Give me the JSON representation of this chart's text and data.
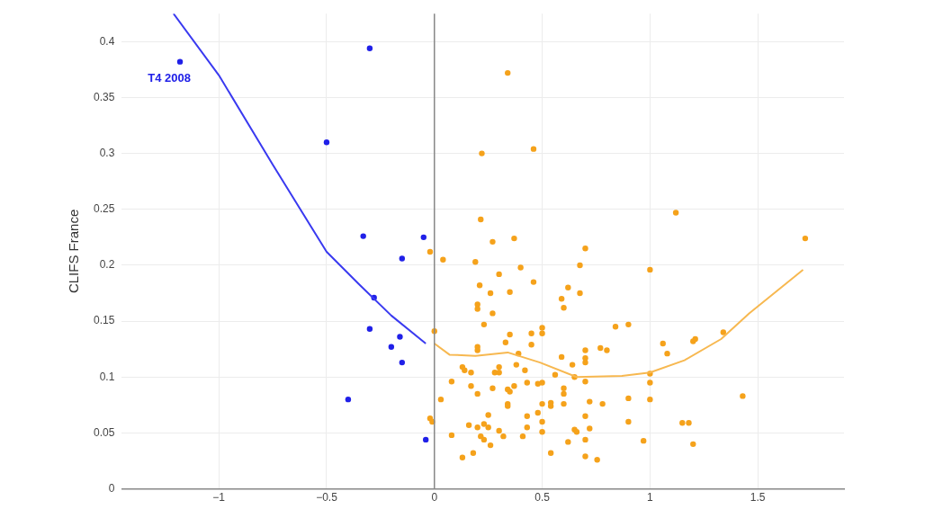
{
  "chart_data": {
    "type": "scatter",
    "ylabel": "CLIFS France",
    "xlim": [
      -1.45,
      1.9
    ],
    "ylim": [
      0,
      0.425
    ],
    "xticks": [
      {
        "value": -1,
        "label": "−1"
      },
      {
        "value": -0.5,
        "label": "−0.5"
      },
      0,
      0.5,
      1,
      1.5
    ],
    "yticks": [
      0,
      0.05,
      0.1,
      0.15,
      0.2,
      0.25,
      0.3,
      0.35,
      0.4
    ],
    "grid": true,
    "marker": "circle",
    "line_style": "solid",
    "ref_lines": [
      {
        "axis": "x",
        "value": 0,
        "color": "#888888"
      }
    ],
    "annotations": [
      {
        "text": "T4 2008",
        "x": -1.18,
        "y": 0.382
      }
    ],
    "series": [
      {
        "color": "#2020e8",
        "x": [
          -1.18,
          -0.3,
          -0.5,
          -0.33,
          -0.05,
          -0.15,
          -0.28,
          -0.3,
          -0.16,
          -0.2,
          -0.15,
          -0.4,
          -0.04
        ],
        "values": [
          0.382,
          0.394,
          0.31,
          0.226,
          0.225,
          0.206,
          0.171,
          0.143,
          0.136,
          0.127,
          0.113,
          0.08,
          0.044
        ]
      },
      {
        "color": "#f5a21b",
        "x": [
          0.22,
          0.46,
          0.215,
          0.27,
          0.37,
          0.7,
          -0.02,
          0.04,
          0.19,
          0.4,
          0.675,
          0.3,
          0.46,
          0.21,
          0.26,
          0.35,
          0.62,
          0.675,
          0.59,
          0.6,
          0.2,
          0.2,
          0.27,
          0.23,
          0,
          0.35,
          0.33,
          0.45,
          0.5,
          0.5,
          0.45,
          0.84,
          0.9,
          0.2,
          0.2,
          0.7,
          0.7,
          0.7,
          0.77,
          0.8,
          0.59,
          0.39,
          0.64,
          0.38,
          0.13,
          0.14,
          0.17,
          0.28,
          0.3,
          0.3,
          0.42,
          0.56,
          0.65,
          0.7,
          0.08,
          0.17,
          0.43,
          0.48,
          0.5,
          0.27,
          0.34,
          0.37,
          0.6,
          0.6,
          0.2,
          0.35,
          0.03,
          0.72,
          0.78,
          0.9,
          0.5,
          0.54,
          0.54,
          0.6,
          0.34,
          0.34,
          -0.02,
          -0.01,
          0.25,
          0.43,
          0.48,
          0.5,
          0.7,
          0.9,
          0.16,
          0.2,
          0.23,
          0.25,
          0.3,
          0.43,
          0.5,
          0.65,
          0.66,
          0.72,
          0.08,
          0.215,
          0.23,
          0.32,
          0.41,
          0.7,
          0.62,
          0.26,
          0.97,
          0.18,
          0.54,
          0.13,
          0.7,
          0.755,
          1,
          1.12,
          1.72,
          1.06,
          1.08,
          1.2,
          1.21,
          1.34,
          1,
          1,
          1,
          1.43,
          1.15,
          1.18,
          1.2,
          0.34
        ],
        "values": [
          0.3,
          0.304,
          0.241,
          0.221,
          0.224,
          0.215,
          0.212,
          0.205,
          0.203,
          0.198,
          0.2,
          0.192,
          0.185,
          0.182,
          0.175,
          0.176,
          0.18,
          0.175,
          0.17,
          0.162,
          0.165,
          0.161,
          0.157,
          0.147,
          0.141,
          0.138,
          0.131,
          0.139,
          0.144,
          0.139,
          0.129,
          0.145,
          0.147,
          0.127,
          0.124,
          0.124,
          0.117,
          0.113,
          0.126,
          0.124,
          0.118,
          0.121,
          0.111,
          0.111,
          0.109,
          0.106,
          0.104,
          0.104,
          0.104,
          0.109,
          0.106,
          0.102,
          0.1,
          0.096,
          0.096,
          0.092,
          0.095,
          0.094,
          0.095,
          0.09,
          0.089,
          0.092,
          0.09,
          0.085,
          0.085,
          0.087,
          0.08,
          0.078,
          0.076,
          0.081,
          0.076,
          0.077,
          0.074,
          0.076,
          0.076,
          0.074,
          0.063,
          0.06,
          0.066,
          0.065,
          0.068,
          0.06,
          0.065,
          0.06,
          0.057,
          0.055,
          0.058,
          0.055,
          0.052,
          0.055,
          0.051,
          0.053,
          0.051,
          0.054,
          0.048,
          0.047,
          0.044,
          0.047,
          0.047,
          0.044,
          0.042,
          0.039,
          0.043,
          0.032,
          0.032,
          0.028,
          0.029,
          0.026,
          0.196,
          0.247,
          0.224,
          0.13,
          0.121,
          0.132,
          0.134,
          0.14,
          0.103,
          0.095,
          0.08,
          0.083,
          0.059,
          0.059,
          0.04,
          0.372
        ]
      },
      {
        "type": "line",
        "marker": "none",
        "color": "#3a3af0",
        "x": [
          -1.21,
          -1,
          -0.75,
          -0.5,
          -0.35,
          -0.2,
          -0.04
        ],
        "values": [
          0.425,
          0.37,
          0.29,
          0.212,
          0.183,
          0.155,
          0.13
        ]
      },
      {
        "type": "line",
        "marker": "none",
        "color": "#f7b850",
        "x": [
          0,
          0.07,
          0.19,
          0.34,
          0.49,
          0.66,
          0.87,
          1,
          1.16,
          1.33,
          1.46,
          1.71
        ],
        "values": [
          0.13,
          0.12,
          0.119,
          0.122,
          0.113,
          0.1,
          0.101,
          0.104,
          0.115,
          0.134,
          0.157,
          0.196
        ]
      }
    ]
  }
}
